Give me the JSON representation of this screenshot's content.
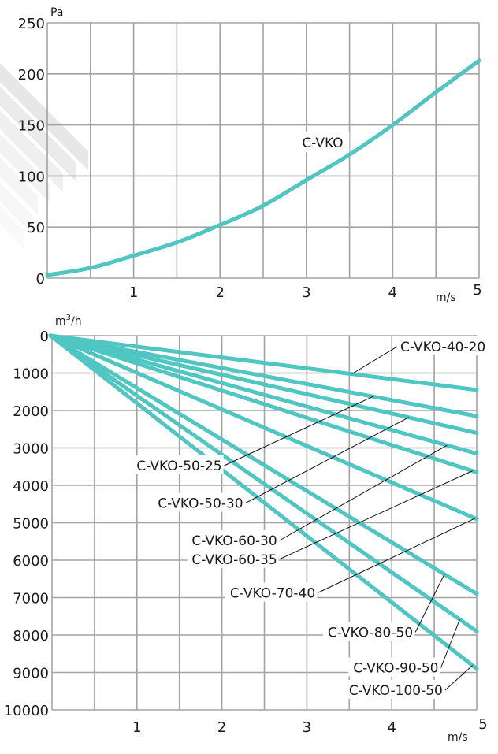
{
  "chart_data": [
    {
      "type": "line",
      "title": "",
      "xlabel": "m/s",
      "ylabel": "Pa",
      "xlim": [
        0,
        5
      ],
      "ylim": [
        0,
        250
      ],
      "grid": true,
      "x_ticks": [
        "1",
        "2",
        "3",
        "4",
        "5"
      ],
      "y_ticks": [
        "0",
        "50",
        "100",
        "150",
        "200",
        "250"
      ],
      "series": [
        {
          "name": "C-VKO",
          "x": [
            0,
            0.5,
            1,
            1.5,
            2,
            2.5,
            3,
            3.5,
            4,
            4.5,
            5
          ],
          "values": [
            3,
            10,
            22,
            35,
            52,
            71,
            96,
            121,
            150,
            182,
            213
          ]
        }
      ],
      "annotations": [
        {
          "text": "C-VKO",
          "x": 2.95,
          "y": 128
        }
      ]
    },
    {
      "type": "line",
      "title": "",
      "xlabel": "m/s",
      "ylabel": "m³/h",
      "xlim": [
        0,
        5
      ],
      "ylim": [
        0,
        10000
      ],
      "y_inverted": true,
      "grid": true,
      "x_ticks": [
        "1",
        "2",
        "3",
        "4",
        "5"
      ],
      "y_ticks": [
        "0",
        "1000",
        "2000",
        "3000",
        "4000",
        "5000",
        "6000",
        "7000",
        "8000",
        "9000",
        "10000"
      ],
      "series": [
        {
          "name": "C-VKO-40-20",
          "x": [
            0,
            5
          ],
          "values": [
            0,
            1450
          ]
        },
        {
          "name": "C-VKO-50-25",
          "x": [
            0,
            5
          ],
          "values": [
            0,
            2150
          ]
        },
        {
          "name": "C-VKO-50-30",
          "x": [
            0,
            5
          ],
          "values": [
            0,
            2600
          ]
        },
        {
          "name": "C-VKO-60-30",
          "x": [
            0,
            5
          ],
          "values": [
            0,
            3150
          ]
        },
        {
          "name": "C-VKO-60-35",
          "x": [
            0,
            5
          ],
          "values": [
            0,
            3650
          ]
        },
        {
          "name": "C-VKO-70-40",
          "x": [
            0,
            5
          ],
          "values": [
            0,
            4900
          ]
        },
        {
          "name": "C-VKO-80-50",
          "x": [
            0,
            5
          ],
          "values": [
            0,
            6900
          ]
        },
        {
          "name": "C-VKO-90-50",
          "x": [
            0,
            5
          ],
          "values": [
            0,
            7900
          ]
        },
        {
          "name": "C-VKO-100-50",
          "x": [
            0,
            5
          ],
          "values": [
            0,
            8900
          ]
        }
      ]
    }
  ],
  "labels": {
    "top_ylabel": "Pa",
    "top_xlabel": "m/s",
    "top_series": "C-VKO",
    "bottom_ylabel_base": "m",
    "bottom_ylabel_sup": "3",
    "bottom_ylabel_tail": "/h",
    "bottom_xlabel": "m/s"
  },
  "colors": {
    "series": "#4fc6c2",
    "grid": "#a3a3a3",
    "text": "#1a1a1a"
  }
}
